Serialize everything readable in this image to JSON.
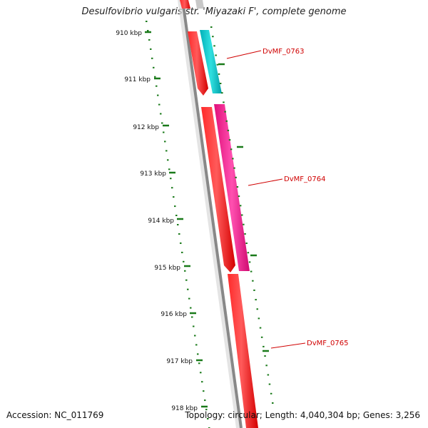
{
  "title": "Desulfovibrio vulgaris str. 'Miyazaki F', complete genome",
  "footer": {
    "accession": "Accession: NC_011769",
    "stats": "Topology: circular; Length: 4,040,304 bp; Genes: 3,256"
  },
  "ticks": [
    "910 kbp",
    "911 kbp",
    "912 kbp",
    "913 kbp",
    "914 kbp",
    "915 kbp",
    "916 kbp",
    "917 kbp",
    "918 kbp"
  ],
  "genes": [
    {
      "name": "DvMF_0763",
      "color": "#00c8c8"
    },
    {
      "name": "DvMF_0764",
      "color": "#ff1493"
    },
    {
      "name": "DvMF_0765",
      "color": "#ff0000"
    }
  ],
  "colors": {
    "cds": "#ff0000",
    "backbone": "#888888",
    "tick": "#1a7a1a",
    "label": "#d00000"
  }
}
